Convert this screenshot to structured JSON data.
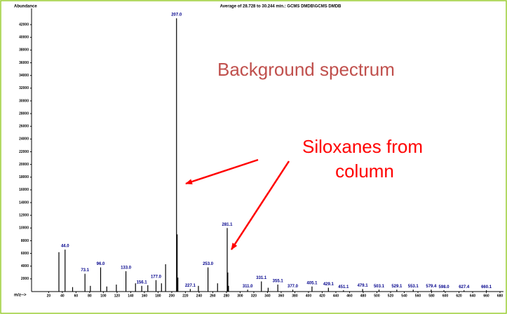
{
  "chart_data": {
    "type": "stem",
    "title": "Average of 28.728 to 30.244 min.: GCMS DMDB\\GCMS DMDB",
    "y_label": "Abundance",
    "x_label": "m/z-->",
    "annotations": [
      "Background spectrum",
      "Siloxanes from",
      "column"
    ],
    "color": "#000000",
    "x": [
      35,
      44,
      55,
      73.1,
      81,
      96,
      105,
      119,
      133,
      147,
      156.1,
      165,
      177,
      185,
      191,
      207,
      208,
      209,
      227.1,
      239,
      253,
      267,
      281.1,
      282,
      283,
      311,
      331.1,
      341,
      355.1,
      377,
      405.1,
      429.1,
      451.1,
      479.1,
      503.1,
      529.1,
      553.1,
      579.4,
      598,
      627.4,
      660.1
    ],
    "values": [
      6200,
      6600,
      700,
      2800,
      900,
      3800,
      800,
      1100,
      3200,
      1300,
      900,
      1000,
      1800,
      1300,
      4300,
      43000,
      9000,
      2200,
      400,
      900,
      3800,
      1300,
      10000,
      3000,
      900,
      300,
      1600,
      600,
      1100,
      300,
      800,
      600,
      200,
      400,
      300,
      300,
      300,
      300,
      200,
      200,
      200
    ],
    "peak_labels": [
      null,
      "44.0",
      null,
      "73.1",
      null,
      "96.0",
      null,
      null,
      "133.0",
      null,
      "156.1",
      null,
      "177.0",
      null,
      null,
      "207.0",
      null,
      null,
      "227.1",
      null,
      "253.0",
      null,
      "281.1",
      null,
      null,
      "311.0",
      "331.1",
      null,
      "355.1",
      "377.0",
      "405.1",
      "429.1",
      "451.1",
      "479.1",
      "503.1",
      "529.1",
      "553.1",
      "579.4",
      "598.0",
      "627.4",
      "660.1"
    ],
    "xlim": [
      -5,
      680
    ],
    "ylim": [
      0,
      44000
    ],
    "xticks": [
      20,
      40,
      60,
      80,
      100,
      120,
      140,
      160,
      180,
      200,
      220,
      240,
      260,
      280,
      300,
      320,
      340,
      360,
      380,
      400,
      420,
      440,
      460,
      480,
      500,
      520,
      540,
      560,
      580,
      600,
      620,
      640,
      660,
      680
    ],
    "yticks": [
      2000,
      4000,
      6000,
      8000,
      10000,
      12000,
      14000,
      16000,
      18000,
      20000,
      22000,
      24000,
      26000,
      28000,
      30000,
      32000,
      34000,
      36000,
      38000,
      40000,
      42000
    ]
  }
}
